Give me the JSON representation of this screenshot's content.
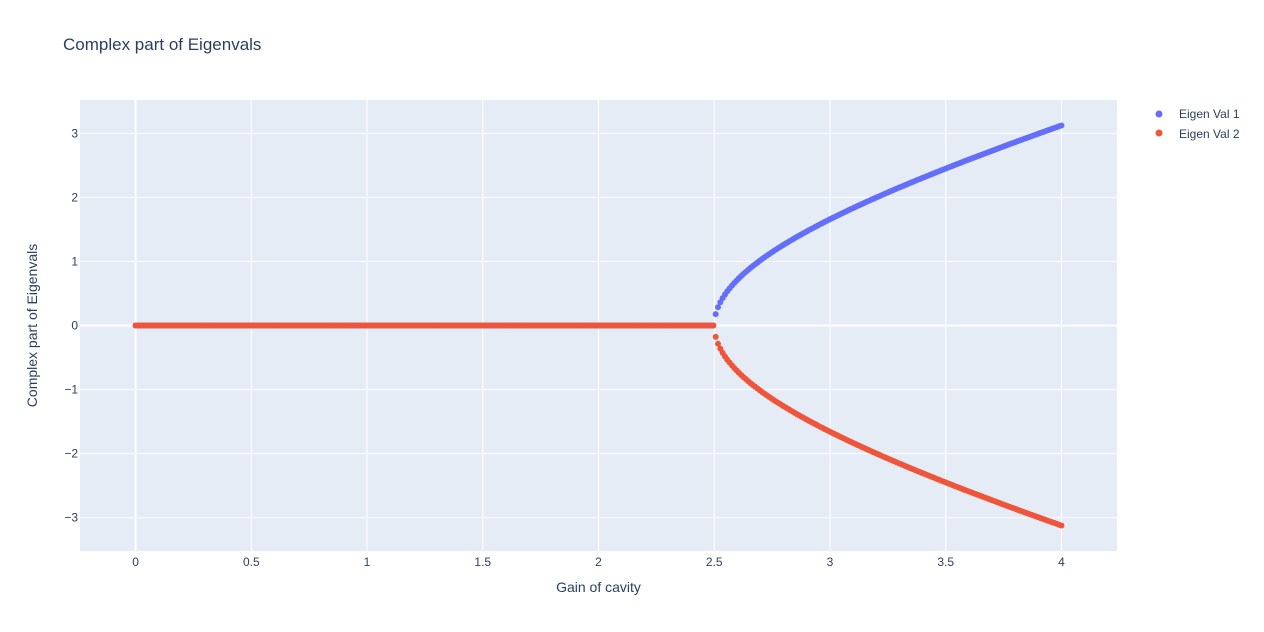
{
  "chart_data": {
    "type": "scatter",
    "title": "Complex part of Eigenvals",
    "xlabel": "Gain of cavity",
    "ylabel": "Complex part of Eigenvals",
    "xlim": [
      -0.24,
      4.24
    ],
    "ylim": [
      -3.52,
      3.52
    ],
    "x_ticks": [
      0,
      0.5,
      1,
      1.5,
      2,
      2.5,
      3,
      3.5,
      4
    ],
    "x_tick_labels": [
      "0",
      "0.5",
      "1",
      "1.5",
      "2",
      "2.5",
      "3",
      "3.5",
      "4"
    ],
    "y_ticks": [
      3,
      2,
      1,
      0,
      -1,
      -2,
      -3
    ],
    "y_tick_labels": [
      "3",
      "2",
      "1",
      "0",
      "−1",
      "−2",
      "−3"
    ],
    "grid": true,
    "legend_position": "top-right outside",
    "x_range": [
      0,
      4
    ],
    "sample_count": 400,
    "branch_point": 2.5,
    "model": "y = sign * sqrt(x^2 - 2.5^2) for x > 2.5, else 0",
    "series": [
      {
        "name": "Eigen Val 1",
        "color": "#636efa",
        "sign": 1
      },
      {
        "name": "Eigen Val 2",
        "color": "#ef553b",
        "sign": -1
      }
    ],
    "colors": {
      "plot_bg": "#e5ecf6",
      "grid": "#ffffff",
      "text": "#2a3f5f"
    }
  }
}
